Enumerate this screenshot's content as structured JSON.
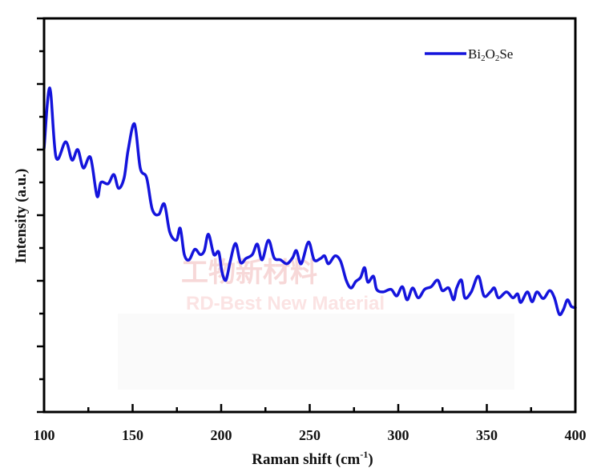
{
  "chart_data": {
    "type": "line",
    "title": "",
    "xlabel": "Raman shift (cm",
    "xlabel_sup": "-1",
    "xlabel_close": ")",
    "ylabel": "Intensity (a.u.)",
    "xlim": [
      100,
      400
    ],
    "ylim": [
      0,
      6
    ],
    "xticks": [
      100,
      150,
      200,
      250,
      300,
      350,
      400
    ],
    "xtick_labels": [
      "100",
      "150",
      "200",
      "250",
      "300",
      "350",
      "400"
    ],
    "grid": false,
    "legend_position": "top-right",
    "series": [
      {
        "name": "Bi2O2Se",
        "legend": {
          "base1": "Bi",
          "sub1": "2",
          "base2": "O",
          "sub2": "2",
          "base3": "Se"
        },
        "color": "#1414dc",
        "x": [
          100,
          103.2,
          106.8,
          112.2,
          115.8,
          119,
          122.2,
          126.2,
          129.9,
          132.1,
          136.2,
          139.4,
          142.1,
          145.2,
          147.5,
          151.1,
          154.3,
          157.9,
          161.1,
          164.7,
          167.9,
          171,
          174.7,
          176.9,
          179.2,
          181.9,
          185.1,
          188.2,
          190.5,
          192.8,
          195.9,
          198.6,
          200.5,
          202.7,
          205,
          208.1,
          210.9,
          214,
          217.6,
          220.4,
          223.1,
          226.7,
          229.9,
          233.5,
          237.1,
          240.3,
          242.5,
          245.2,
          249.3,
          252.5,
          256.1,
          258.4,
          260.6,
          264.3,
          267.4,
          270.6,
          273.3,
          276,
          278.7,
          281,
          282.8,
          286,
          287.8,
          291.4,
          295.9,
          299.1,
          302.3,
          305,
          308.1,
          311.3,
          314.9,
          318.6,
          322.2,
          324.9,
          328.5,
          331.2,
          333,
          335.7,
          337.6,
          341.2,
          345.2,
          348.4,
          352,
          354.3,
          356.6,
          361.1,
          364.7,
          367.4,
          369.2,
          372.9,
          375.6,
          378.3,
          381.9,
          385.5,
          388.2,
          390.9,
          393.2,
          395.5,
          397.7,
          400
        ],
        "y": [
          4.02,
          4.94,
          3.88,
          4.12,
          3.84,
          4.0,
          3.72,
          3.88,
          3.29,
          3.5,
          3.48,
          3.62,
          3.41,
          3.57,
          4.0,
          4.39,
          3.72,
          3.57,
          3.09,
          3.01,
          3.17,
          2.74,
          2.62,
          2.8,
          2.4,
          2.32,
          2.48,
          2.4,
          2.46,
          2.71,
          2.4,
          2.44,
          2.13,
          2.01,
          2.28,
          2.57,
          2.28,
          2.34,
          2.4,
          2.56,
          2.32,
          2.62,
          2.35,
          2.32,
          2.26,
          2.35,
          2.46,
          2.26,
          2.59,
          2.32,
          2.34,
          2.38,
          2.26,
          2.38,
          2.3,
          2.01,
          1.89,
          1.99,
          2.05,
          2.2,
          1.98,
          2.07,
          1.87,
          1.83,
          1.87,
          1.77,
          1.91,
          1.71,
          1.89,
          1.74,
          1.87,
          1.91,
          2.01,
          1.85,
          1.89,
          1.71,
          1.89,
          2.01,
          1.74,
          1.83,
          2.07,
          1.77,
          1.83,
          1.89,
          1.74,
          1.83,
          1.74,
          1.8,
          1.67,
          1.83,
          1.68,
          1.83,
          1.73,
          1.85,
          1.74,
          1.49,
          1.56,
          1.71,
          1.61,
          1.59
        ]
      }
    ]
  },
  "watermark": {
    "line1": "工物新材料",
    "line2": "RD-Best New Material"
  }
}
